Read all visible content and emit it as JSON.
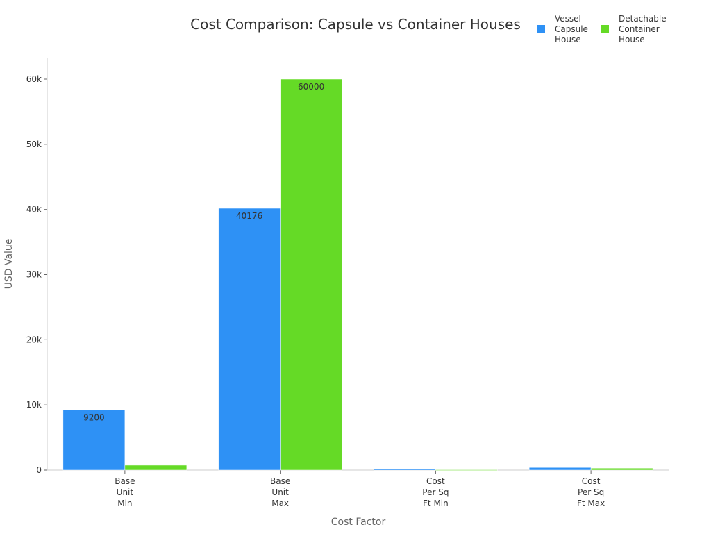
{
  "chart_data": {
    "type": "bar",
    "title": "Cost Comparison: Capsule vs Container Houses",
    "xlabel": "Cost Factor",
    "ylabel": "USD Value",
    "ylim": [
      0,
      63000
    ],
    "yticks": [
      0,
      10000,
      20000,
      30000,
      40000,
      50000,
      60000
    ],
    "ytick_labels": [
      "0",
      "10k",
      "20k",
      "30k",
      "40k",
      "50k",
      "60k"
    ],
    "categories": [
      [
        "Base",
        "Unit",
        "Min"
      ],
      [
        "Base",
        "Unit",
        "Max"
      ],
      [
        "Cost",
        "Per Sq",
        "Ft Min"
      ],
      [
        "Cost",
        "Per Sq",
        "Ft Max"
      ]
    ],
    "series": [
      {
        "name": [
          "Vessel",
          "Capsule",
          "House"
        ],
        "color": "#2e91f5",
        "values": [
          9200,
          40176,
          150,
          400
        ],
        "labels": [
          "9200",
          "40176",
          null,
          null
        ]
      },
      {
        "name": [
          "Detachable",
          "Container",
          "House"
        ],
        "color": "#65da26",
        "values": [
          750,
          60000,
          50,
          300
        ],
        "labels": [
          null,
          "60000",
          null,
          null
        ]
      }
    ],
    "legend": "top-right",
    "grid": false
  }
}
